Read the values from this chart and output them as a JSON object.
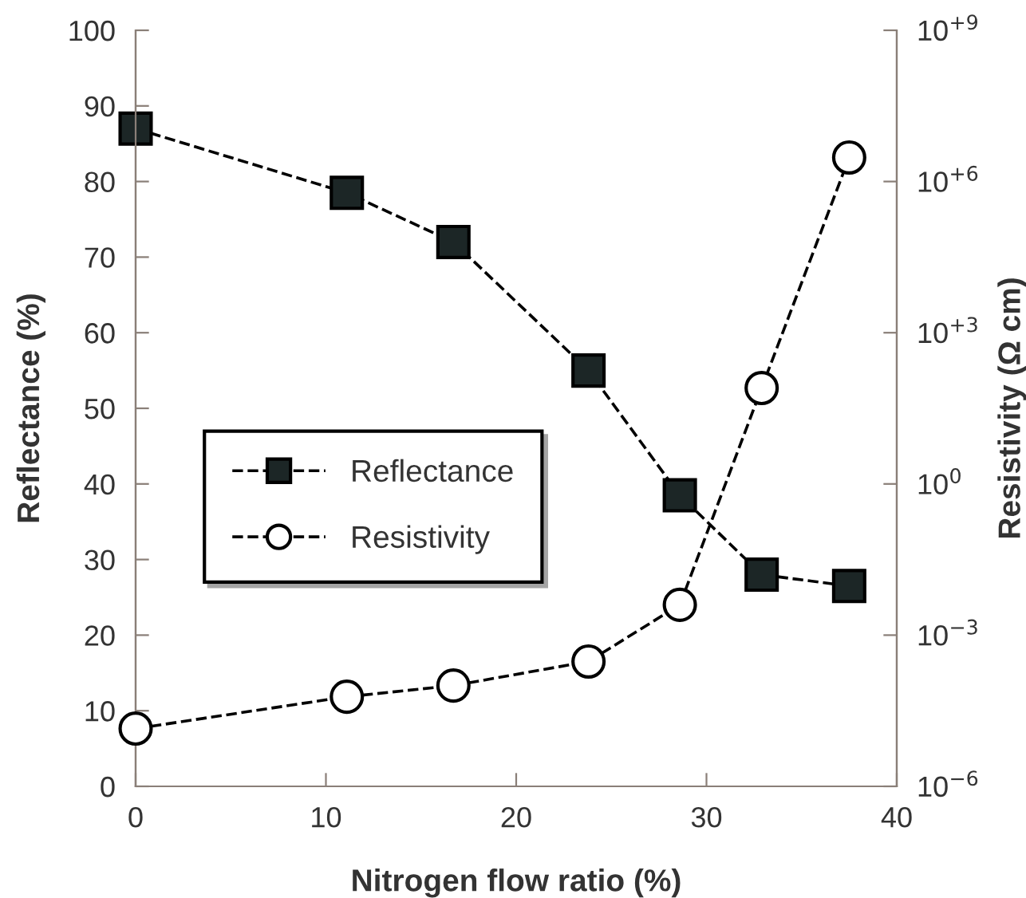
{
  "chart_data": {
    "type": "line",
    "xlabel": "Nitrogen flow ratio (%)",
    "ylabel": "Reflectance (%)",
    "y2label": "Resistivity (Ω cm)",
    "xlim": [
      0,
      40
    ],
    "xticks": [
      0,
      10,
      20,
      30,
      40
    ],
    "ylim": [
      0,
      100
    ],
    "yticks": [
      0,
      10,
      20,
      30,
      40,
      50,
      60,
      70,
      80,
      90,
      100
    ],
    "y2lim": [
      1e-06,
      1000000000.0
    ],
    "y2ticks": [
      {
        "value": 1e-06,
        "label": "10$^{−6}$"
      },
      {
        "value": 0.001,
        "label": "10$^{−3}$"
      },
      {
        "value": 1,
        "label": "10$^{0}$"
      },
      {
        "value": 1000.0,
        "label": "10$^{+3}$"
      },
      {
        "value": 1000000.0,
        "label": "10$^{+6}$"
      },
      {
        "value": 1000000000.0,
        "label": "10$^{+9}$"
      }
    ],
    "log": "y2",
    "grid": false,
    "legend": "left",
    "line_style": "dashed",
    "series": [
      {
        "name": "Reflectance",
        "color": "#1c2626",
        "marker": "square",
        "x": [
          0,
          11.1,
          16.7,
          23.8,
          28.6,
          32.9,
          37.5
        ],
        "values": [
          87,
          78.5,
          72,
          55,
          38.5,
          28,
          26.5
        ]
      },
      {
        "name": "Resistivity",
        "color": "#ffffff",
        "marker": "circle",
        "axis": "y2",
        "x": [
          0,
          11.1,
          16.7,
          23.8,
          28.6,
          32.9,
          37.5
        ],
        "values": [
          1.4e-05,
          6e-05,
          0.0001,
          0.0003,
          0.004,
          80,
          3000000.0
        ]
      }
    ]
  }
}
